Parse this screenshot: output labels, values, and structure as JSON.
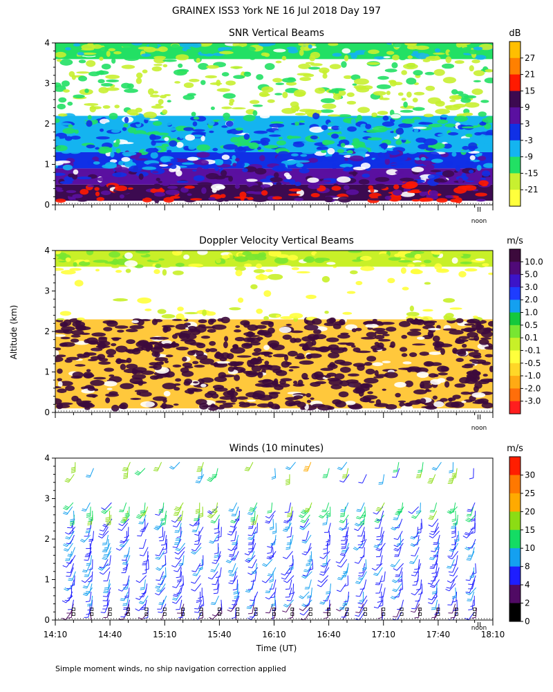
{
  "figure": {
    "title": "GRAINEX ISS3 York NE  16 Jul 2018 Day 197",
    "ylabel": "Altitude (km)",
    "xlabel": "Time (UT)",
    "footnote": "Simple moment winds, no ship navigation correction applied",
    "noon_label": "noon"
  },
  "chart_data": [
    {
      "type": "heatmap",
      "title": "SNR Vertical Beams",
      "xlabel": "",
      "ylabel": "Altitude (km)",
      "yticks": [
        "0",
        "1",
        "2",
        "3",
        "4"
      ],
      "ylim": [
        0,
        4
      ],
      "xlim": [
        "14:10",
        "18:10"
      ],
      "colorbar": {
        "unit": "dB",
        "labels": [
          "27",
          "21",
          "15",
          "9",
          "3",
          "-3",
          "-9",
          "-15",
          "-21"
        ],
        "colors": [
          "#ffbf00",
          "#ff8000",
          "#ff1a00",
          "#3c0a50",
          "#5a10a0",
          "#1030e6",
          "#14b4f0",
          "#22e064",
          "#c8f030",
          "#ffff3c"
        ]
      },
      "layers": [
        {
          "alt_range_km": [
            0.1,
            0.5
          ],
          "class": "9 to 15 dB",
          "color": "#3c0a50"
        },
        {
          "alt_range_km": [
            0.5,
            0.9
          ],
          "class": "3 to 9 dB",
          "color": "#5a10a0"
        },
        {
          "alt_range_km": [
            0.9,
            1.3
          ],
          "class": "-3 to 3 dB",
          "color": "#1030e6"
        },
        {
          "alt_range_km": [
            1.3,
            2.2
          ],
          "class": "-15 to -3 dB",
          "color": "#14b4f0"
        },
        {
          "alt_range_km": [
            2.2,
            3.6
          ],
          "class": "below -21 dB / no data",
          "color": "#ffffff"
        },
        {
          "alt_range_km": [
            3.6,
            4.0
          ],
          "class": "-15 to -9 dB",
          "color": "#22e064"
        }
      ]
    },
    {
      "type": "heatmap",
      "title": "Doppler Velocity Vertical Beams",
      "xlabel": "",
      "ylabel": "Altitude (km)",
      "yticks": [
        "0",
        "1",
        "2",
        "3",
        "4"
      ],
      "ylim": [
        0,
        4
      ],
      "xlim": [
        "14:10",
        "18:10"
      ],
      "colorbar": {
        "unit": "m/s",
        "labels": [
          "10.0",
          "5.0",
          "3.0",
          "2.0",
          "1.0",
          "0.5",
          "0.1",
          "-0.1",
          "-0.5",
          "-1.0",
          "-2.0",
          "-3.0"
        ],
        "colors": [
          "#3c0a3c",
          "#500a78",
          "#3c14c8",
          "#1e3cff",
          "#14a0f0",
          "#14c83c",
          "#78e632",
          "#c8f028",
          "#ffff3c",
          "#ffd728",
          "#ffaa14",
          "#ff6e0a",
          "#ff1e1e"
        ]
      },
      "layers": [
        {
          "alt_range_km": [
            0.1,
            2.3
          ],
          "class": "-0.5 to 0.1 m/s",
          "color": "#ffc83c"
        },
        {
          "alt_range_km": [
            2.3,
            3.6
          ],
          "class": "no data",
          "color": "#ffffff"
        },
        {
          "alt_range_km": [
            3.6,
            4.0
          ],
          "class": "-0.1 to 0.5 m/s",
          "color": "#c8f028"
        }
      ]
    },
    {
      "type": "scatter",
      "title": "Winds (10 minutes)",
      "xlabel": "Time (UT)",
      "ylabel": "Altitude (km)",
      "yticks": [
        "0",
        "1",
        "2",
        "3",
        "4"
      ],
      "ylim": [
        0,
        4
      ],
      "xticks": [
        "14:10",
        "14:40",
        "15:10",
        "15:40",
        "16:10",
        "16:40",
        "17:10",
        "17:40",
        "18:10"
      ],
      "xlim": [
        "14:10",
        "18:10"
      ],
      "interval_minutes": 10,
      "colorbar": {
        "unit": "m/s",
        "labels": [
          "30",
          "25",
          "20",
          "15",
          "10",
          "8",
          "4",
          "2",
          "0"
        ],
        "colors": [
          "#ff1e00",
          "#ff7800",
          "#ffaa00",
          "#8cdc14",
          "#14dc64",
          "#14a0f0",
          "#1e1eff",
          "#500a64",
          "#000000"
        ]
      }
    }
  ]
}
